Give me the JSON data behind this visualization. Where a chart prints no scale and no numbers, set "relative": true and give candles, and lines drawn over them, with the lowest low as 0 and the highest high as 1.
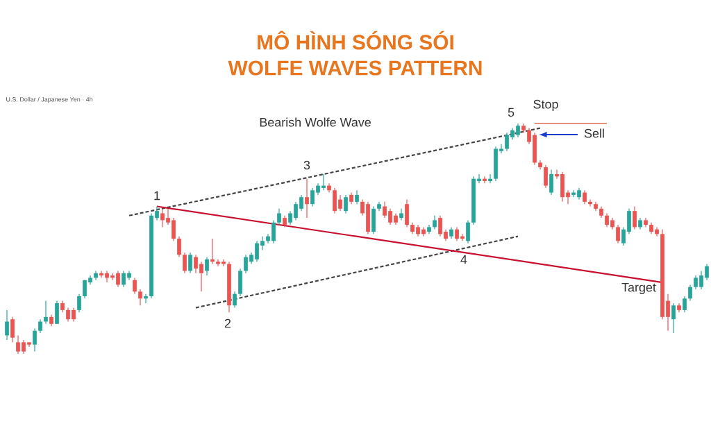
{
  "chart_data": {
    "type": "candlestick",
    "title": "MÔ HÌNH SÓNG SÓI",
    "subtitle": "WOLFE WAVES PATTERN",
    "relative": true,
    "annotations": [
      "U.S. Dollar / Japanese Yen · 4h",
      "Bearish Wolfe Wave",
      "1",
      "2",
      "3",
      "4",
      "5",
      "Stop",
      "Sell",
      "Target"
    ],
    "categories": [
      null,
      null,
      null,
      null,
      null,
      null,
      null,
      null,
      null,
      null,
      null,
      null,
      null,
      null,
      null,
      null,
      null,
      null,
      null,
      null,
      null,
      null,
      null,
      null,
      null,
      null,
      null,
      null,
      null,
      null,
      null,
      null,
      null,
      null,
      null,
      null,
      null,
      null,
      null,
      null,
      null,
      null,
      null,
      null,
      null,
      null,
      null,
      null,
      null,
      null,
      null,
      null,
      null,
      null,
      null,
      null,
      null,
      null,
      null,
      null,
      null,
      null,
      null,
      null,
      null,
      null,
      null,
      null,
      null,
      null,
      null,
      null,
      null,
      null,
      null,
      null,
      null,
      null,
      null,
      null,
      null,
      null,
      null,
      null,
      null,
      null,
      null,
      null,
      null,
      null,
      null,
      null,
      null,
      null,
      null,
      null,
      null,
      null,
      null,
      null,
      null,
      null,
      null,
      null,
      null,
      null,
      null,
      null,
      null,
      null,
      null,
      null,
      null,
      null,
      null,
      null,
      null,
      null,
      null,
      null,
      null,
      null,
      null,
      null,
      null,
      null,
      null
    ],
    "ohlc": [
      [
        0.08,
        0.19,
        0.06,
        0.14
      ],
      [
        0.15,
        0.16,
        0.05,
        0.07
      ],
      [
        0.05,
        0.08,
        0,
        0.01
      ],
      [
        0.05,
        0.06,
        0,
        0.01
      ],
      [
        0.05,
        0.05,
        0.03,
        0.04
      ],
      [
        0.04,
        0.11,
        0.01,
        0.1
      ],
      [
        0.1,
        0.15,
        0.09,
        0.14
      ],
      [
        0.14,
        0.23,
        0.13,
        0.16
      ],
      [
        0.16,
        0.17,
        0.12,
        0.13
      ],
      [
        0.13,
        0.23,
        0.13,
        0.22
      ],
      [
        0.22,
        0.23,
        0.18,
        0.19
      ],
      [
        0.19,
        0.2,
        0.14,
        0.15
      ],
      [
        0.19,
        0.2,
        0.14,
        0.15
      ],
      [
        0.19,
        0.26,
        0.18,
        0.25
      ],
      [
        0.25,
        0.32,
        0.24,
        0.32
      ],
      [
        0.31,
        0.34,
        0.3,
        0.33
      ],
      [
        0.33,
        0.36,
        0.32,
        0.35
      ],
      [
        0.35,
        0.36,
        0.33,
        0.34
      ],
      [
        0.35,
        0.36,
        0.31,
        0.33
      ],
      [
        0.34,
        0.35,
        0.32,
        0.33
      ],
      [
        0.35,
        0.36,
        0.29,
        0.3
      ],
      [
        0.3,
        0.36,
        0.29,
        0.35
      ],
      [
        0.33,
        0.36,
        0.32,
        0.35
      ],
      [
        0.32,
        0.33,
        0.26,
        0.27
      ],
      [
        0.27,
        0.28,
        0.21,
        0.24
      ],
      [
        0.24,
        0.26,
        0.22,
        0.25
      ],
      [
        0.25,
        0.61,
        0.24,
        0.6
      ],
      [
        0.59,
        0.64,
        0.58,
        0.62
      ],
      [
        0.61,
        0.63,
        0.55,
        0.58
      ],
      [
        0.59,
        0.63,
        0.56,
        0.57
      ],
      [
        0.58,
        0.59,
        0.49,
        0.5
      ],
      [
        0.5,
        0.51,
        0.42,
        0.43
      ],
      [
        0.43,
        0.44,
        0.35,
        0.36
      ],
      [
        0.36,
        0.44,
        0.35,
        0.43
      ],
      [
        0.42,
        0.43,
        0.35,
        0.37
      ],
      [
        0.39,
        0.4,
        0.27,
        0.35
      ],
      [
        0.36,
        0.42,
        0.34,
        0.41
      ],
      [
        0.41,
        0.5,
        0.39,
        0.4
      ],
      [
        0.4,
        0.41,
        0.38,
        0.39
      ],
      [
        0.4,
        0.41,
        0.38,
        0.39
      ],
      [
        0.39,
        0.4,
        0.18,
        0.21
      ],
      [
        0.21,
        0.27,
        0.2,
        0.26
      ],
      [
        0.26,
        0.37,
        0.25,
        0.36
      ],
      [
        0.36,
        0.43,
        0.35,
        0.42
      ],
      [
        0.4,
        0.44,
        0.39,
        0.43
      ],
      [
        0.41,
        0.49,
        0.4,
        0.48
      ],
      [
        0.47,
        0.51,
        0.45,
        0.49
      ],
      [
        0.49,
        0.52,
        0.48,
        0.51
      ],
      [
        0.49,
        0.58,
        0.48,
        0.57
      ],
      [
        0.57,
        0.63,
        0.56,
        0.61
      ],
      [
        0.59,
        0.6,
        0.55,
        0.56
      ],
      [
        0.57,
        0.62,
        0.56,
        0.61
      ],
      [
        0.59,
        0.66,
        0.58,
        0.65
      ],
      [
        0.63,
        0.69,
        0.62,
        0.68
      ],
      [
        0.68,
        0.76,
        0.59,
        0.65
      ],
      [
        0.65,
        0.72,
        0.64,
        0.71
      ],
      [
        0.7,
        0.74,
        0.69,
        0.73
      ],
      [
        0.72,
        0.78,
        0.71,
        0.73
      ],
      [
        0.73,
        0.74,
        0.7,
        0.71
      ],
      [
        0.71,
        0.72,
        0.61,
        0.62
      ],
      [
        0.67,
        0.69,
        0.62,
        0.63
      ],
      [
        0.62,
        0.69,
        0.61,
        0.68
      ],
      [
        0.69,
        0.7,
        0.65,
        0.66
      ],
      [
        0.66,
        0.71,
        0.65,
        0.69
      ],
      [
        0.66,
        0.67,
        0.6,
        0.61
      ],
      [
        0.65,
        0.66,
        0.52,
        0.53
      ],
      [
        0.53,
        0.64,
        0.52,
        0.63
      ],
      [
        0.63,
        0.66,
        0.62,
        0.65
      ],
      [
        0.64,
        0.66,
        0.59,
        0.6
      ],
      [
        0.62,
        0.63,
        0.56,
        0.57
      ],
      [
        0.6,
        0.61,
        0.56,
        0.57
      ],
      [
        0.59,
        0.63,
        0.58,
        0.61
      ],
      [
        0.65,
        0.67,
        0.55,
        0.56
      ],
      [
        0.56,
        0.57,
        0.52,
        0.53
      ],
      [
        0.55,
        0.56,
        0.51,
        0.52
      ],
      [
        0.54,
        0.55,
        0.51,
        0.52
      ],
      [
        0.53,
        0.56,
        0.52,
        0.55
      ],
      [
        0.55,
        0.6,
        0.54,
        0.58
      ],
      [
        0.59,
        0.6,
        0.51,
        0.52
      ],
      [
        0.53,
        0.54,
        0.49,
        0.5
      ],
      [
        0.51,
        0.55,
        0.5,
        0.54
      ],
      [
        0.54,
        0.55,
        0.49,
        0.5
      ],
      [
        0.51,
        0.52,
        0.49,
        0.5
      ],
      [
        0.49,
        0.58,
        0.48,
        0.57
      ],
      [
        0.57,
        0.77,
        0.56,
        0.76
      ],
      [
        0.75,
        0.78,
        0.74,
        0.76
      ],
      [
        0.76,
        0.77,
        0.74,
        0.75
      ],
      [
        0.75,
        0.78,
        0.74,
        0.76
      ],
      [
        0.76,
        0.9,
        0.75,
        0.89
      ],
      [
        0.88,
        0.91,
        0.87,
        0.89
      ],
      [
        0.89,
        0.96,
        0.88,
        0.95
      ],
      [
        0.94,
        0.98,
        0.93,
        0.97
      ],
      [
        0.95,
        1,
        0.94,
        0.99
      ],
      [
        0.99,
        1,
        0.96,
        0.97
      ],
      [
        0.97,
        0.98,
        0.91,
        0.92
      ],
      [
        0.95,
        0.96,
        0.82,
        0.83
      ],
      [
        0.83,
        0.84,
        0.8,
        0.81
      ],
      [
        0.81,
        0.82,
        0.72,
        0.73
      ],
      [
        0.7,
        0.8,
        0.69,
        0.78
      ],
      [
        0.78,
        0.8,
        0.76,
        0.77
      ],
      [
        0.78,
        0.79,
        0.66,
        0.68
      ],
      [
        0.7,
        0.71,
        0.65,
        0.68
      ],
      [
        0.69,
        0.71,
        0.68,
        0.7
      ],
      [
        0.68,
        0.72,
        0.67,
        0.71
      ],
      [
        0.7,
        0.71,
        0.65,
        0.66
      ],
      [
        0.66,
        0.67,
        0.64,
        0.65
      ],
      [
        0.65,
        0.66,
        0.62,
        0.63
      ],
      [
        0.63,
        0.64,
        0.59,
        0.6
      ],
      [
        0.6,
        0.61,
        0.55,
        0.56
      ],
      [
        0.58,
        0.59,
        0.54,
        0.55
      ],
      [
        0.55,
        0.56,
        0.48,
        0.49
      ],
      [
        0.48,
        0.55,
        0.47,
        0.54
      ],
      [
        0.53,
        0.63,
        0.52,
        0.62
      ],
      [
        0.62,
        0.64,
        0.54,
        0.55
      ],
      [
        0.55,
        0.59,
        0.54,
        0.58
      ],
      [
        0.58,
        0.59,
        0.55,
        0.56
      ],
      [
        0.56,
        0.57,
        0.52,
        0.53
      ],
      [
        0.54,
        0.55,
        0.51,
        0.52
      ],
      [
        0.52,
        0.54,
        0.15,
        0.16
      ],
      [
        0.23,
        0.26,
        0.1,
        0.16
      ],
      [
        0.15,
        0.22,
        0.09,
        0.21
      ],
      [
        0.21,
        0.22,
        0.18,
        0.19
      ],
      [
        0.19,
        0.25,
        0.18,
        0.24
      ],
      [
        0.24,
        0.3,
        0.23,
        0.29
      ],
      [
        0.29,
        0.34,
        0.28,
        0.33
      ],
      [
        0.29,
        0.36,
        0.28,
        0.34
      ],
      [
        0.33,
        0.39,
        0.32,
        0.38
      ]
    ],
    "series": [
      {
        "type": "line",
        "color": "#444444",
        "line_style": "dashed",
        "values": [
          null,
          null,
          null,
          null,
          null,
          null,
          null,
          null,
          null,
          null,
          null,
          null,
          null,
          null,
          null,
          null,
          null,
          null,
          null,
          null,
          null,
          null,
          0.6,
          null,
          null,
          null,
          null,
          null,
          null,
          null,
          null,
          null,
          null,
          null,
          null,
          null,
          null,
          null,
          null,
          null,
          null,
          null,
          null,
          null,
          null,
          null,
          null,
          null,
          null,
          null,
          null,
          null,
          null,
          null,
          null,
          null,
          null,
          null,
          null,
          null,
          null,
          null,
          null,
          null,
          null,
          null,
          null,
          null,
          null,
          null,
          null,
          null,
          null,
          null,
          null,
          null,
          null,
          null,
          null,
          null,
          null,
          null,
          null,
          null,
          null,
          null,
          null,
          null,
          null,
          null,
          null,
          null,
          null,
          null,
          null,
          null,
          0.98,
          null,
          null,
          null,
          null,
          null,
          null,
          null,
          null,
          null,
          null,
          null,
          null,
          null,
          null,
          null,
          null,
          null,
          null,
          null,
          null,
          null,
          null,
          null,
          null,
          null,
          null,
          null,
          null,
          null,
          null
        ]
      },
      {
        "type": "line",
        "color": "#444444",
        "line_style": "dashed",
        "values": [
          null,
          null,
          null,
          null,
          null,
          null,
          null,
          null,
          null,
          null,
          null,
          null,
          null,
          null,
          null,
          null,
          null,
          null,
          null,
          null,
          null,
          null,
          null,
          null,
          null,
          null,
          null,
          null,
          null,
          null,
          null,
          null,
          null,
          null,
          0.2,
          null,
          null,
          null,
          null,
          null,
          null,
          null,
          null,
          null,
          null,
          null,
          null,
          null,
          null,
          null,
          null,
          null,
          null,
          null,
          null,
          null,
          null,
          null,
          null,
          null,
          null,
          null,
          null,
          null,
          null,
          null,
          null,
          null,
          null,
          null,
          null,
          null,
          null,
          null,
          null,
          null,
          null,
          null,
          null,
          null,
          null,
          null,
          null,
          null,
          null,
          null,
          null,
          null,
          null,
          null,
          null,
          null,
          0.51,
          null,
          null,
          null,
          null,
          null,
          null,
          null,
          null,
          null,
          null,
          null,
          null,
          null,
          null,
          null,
          null,
          null,
          null,
          null,
          null,
          null,
          null,
          null,
          null,
          null,
          null,
          null,
          null,
          null,
          null,
          null,
          null,
          null,
          null
        ]
      },
      {
        "type": "line",
        "color": "#c8102e",
        "line_style": "solid",
        "values": [
          null,
          null,
          null,
          null,
          null,
          null,
          null,
          null,
          null,
          null,
          null,
          null,
          null,
          null,
          null,
          null,
          null,
          null,
          null,
          null,
          null,
          null,
          null,
          null,
          null,
          null,
          null,
          0.64,
          null,
          null,
          null,
          null,
          null,
          null,
          null,
          null,
          null,
          null,
          null,
          null,
          null,
          null,
          null,
          null,
          null,
          null,
          null,
          null,
          null,
          null,
          null,
          null,
          null,
          null,
          null,
          null,
          null,
          null,
          null,
          null,
          null,
          null,
          null,
          null,
          null,
          null,
          null,
          null,
          null,
          null,
          null,
          null,
          null,
          null,
          null,
          null,
          null,
          null,
          null,
          null,
          null,
          null,
          null,
          null,
          null,
          null,
          null,
          null,
          null,
          null,
          null,
          null,
          null,
          null,
          null,
          null,
          null,
          null,
          null,
          null,
          null,
          null,
          null,
          null,
          null,
          null,
          null,
          null,
          null,
          null,
          null,
          null,
          null,
          null,
          null,
          null,
          null,
          null,
          0.31,
          null,
          null,
          null,
          null,
          null,
          null,
          null,
          null
        ]
      },
      {
        "type": "line",
        "color": "#e8907a",
        "line_style": "solid",
        "values": [
          null,
          null,
          null,
          null,
          null,
          null,
          null,
          null,
          null,
          null,
          null,
          null,
          null,
          null,
          null,
          null,
          null,
          null,
          null,
          null,
          null,
          null,
          null,
          null,
          null,
          null,
          null,
          null,
          null,
          null,
          null,
          null,
          null,
          null,
          null,
          null,
          null,
          null,
          null,
          null,
          null,
          null,
          null,
          null,
          null,
          null,
          null,
          null,
          null,
          null,
          null,
          null,
          null,
          null,
          null,
          null,
          null,
          null,
          null,
          null,
          null,
          null,
          null,
          null,
          null,
          null,
          null,
          null,
          null,
          null,
          null,
          null,
          null,
          null,
          null,
          null,
          null,
          null,
          null,
          null,
          null,
          null,
          null,
          null,
          null,
          null,
          null,
          null,
          null,
          null,
          null,
          null,
          null,
          null,
          null,
          1.0,
          null,
          null,
          null,
          null,
          null,
          null,
          null,
          null,
          null,
          null,
          null,
          null,
          1.0,
          null,
          null,
          null,
          null,
          null,
          null,
          null,
          null,
          null,
          null,
          null,
          null,
          null,
          null,
          null,
          null,
          null,
          null
        ]
      }
    ]
  }
}
